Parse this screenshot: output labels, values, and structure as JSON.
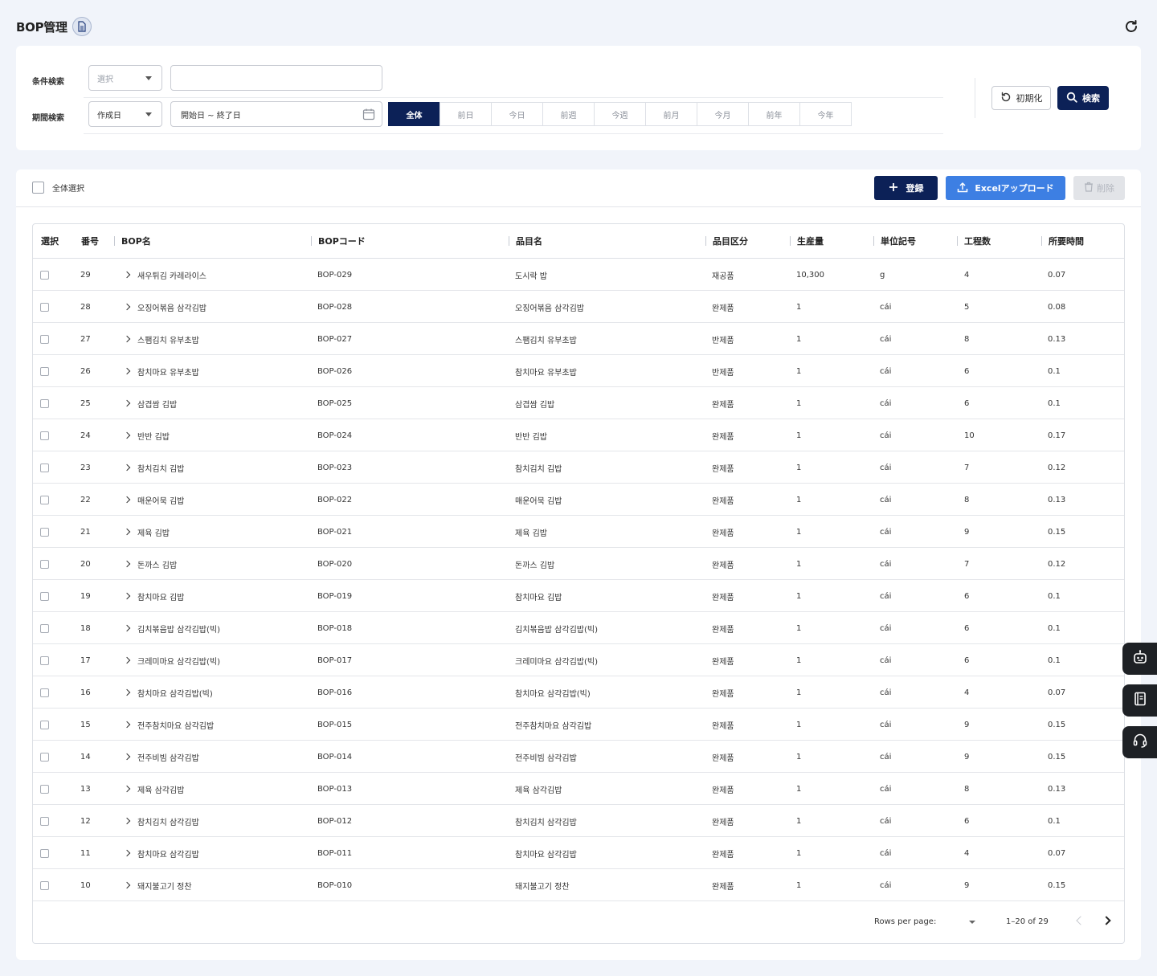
{
  "header": {
    "title": "BOP管理"
  },
  "search": {
    "condition_label": "条件検索",
    "condition_select_placeholder": "選択",
    "condition_input_value": "",
    "period_label": "期間検索",
    "period_select_value": "作成日",
    "date_range_placeholder": "開始日 ~ 終了日",
    "period_options": [
      "全体",
      "前日",
      "今日",
      "前週",
      "今週",
      "前月",
      "今月",
      "前年",
      "今年"
    ],
    "active_period": "全体",
    "reset_label": "初期化",
    "search_label": "検索"
  },
  "toolbar": {
    "select_all_label": "全体選択",
    "register_label": "登録",
    "excel_label": "Excelアップロード",
    "delete_label": "削除"
  },
  "table": {
    "columns": [
      "選択",
      "番号",
      "BOP名",
      "BOPコード",
      "品目名",
      "品目区分",
      "生産量",
      "単位記号",
      "工程数",
      "所要時間"
    ],
    "rows": [
      {
        "no": "29",
        "name": "새우튀김 카레라이스",
        "code": "BOP-029",
        "item": "도시락 밥",
        "category": "재공품",
        "qty": "10,300",
        "unit": "g",
        "steps": "4",
        "time": "0.07"
      },
      {
        "no": "28",
        "name": "오징어볶음 삼각김밥",
        "code": "BOP-028",
        "item": "오징어볶음 삼각김밥",
        "category": "완제품",
        "qty": "1",
        "unit": "cái",
        "steps": "5",
        "time": "0.08"
      },
      {
        "no": "27",
        "name": "스팸김치 유부초밥",
        "code": "BOP-027",
        "item": "스팸김치 유부초밥",
        "category": "반제품",
        "qty": "1",
        "unit": "cái",
        "steps": "8",
        "time": "0.13"
      },
      {
        "no": "26",
        "name": "참치마요 유부초밥",
        "code": "BOP-026",
        "item": "참치마요 유부초밥",
        "category": "반제품",
        "qty": "1",
        "unit": "cái",
        "steps": "6",
        "time": "0.1"
      },
      {
        "no": "25",
        "name": "삼겹쌈 김밥",
        "code": "BOP-025",
        "item": "삼겹쌈 김밥",
        "category": "완제품",
        "qty": "1",
        "unit": "cái",
        "steps": "6",
        "time": "0.1"
      },
      {
        "no": "24",
        "name": "반반 김밥",
        "code": "BOP-024",
        "item": "반반 김밥",
        "category": "완제품",
        "qty": "1",
        "unit": "cái",
        "steps": "10",
        "time": "0.17"
      },
      {
        "no": "23",
        "name": "참치김치 김밥",
        "code": "BOP-023",
        "item": "참치김치 김밥",
        "category": "완제품",
        "qty": "1",
        "unit": "cái",
        "steps": "7",
        "time": "0.12"
      },
      {
        "no": "22",
        "name": "매운어묵 김밥",
        "code": "BOP-022",
        "item": "매운어묵 김밥",
        "category": "완제품",
        "qty": "1",
        "unit": "cái",
        "steps": "8",
        "time": "0.13"
      },
      {
        "no": "21",
        "name": "제육 김밥",
        "code": "BOP-021",
        "item": "제육 김밥",
        "category": "완제품",
        "qty": "1",
        "unit": "cái",
        "steps": "9",
        "time": "0.15"
      },
      {
        "no": "20",
        "name": "돈까스 김밥",
        "code": "BOP-020",
        "item": "돈까스 김밥",
        "category": "완제품",
        "qty": "1",
        "unit": "cái",
        "steps": "7",
        "time": "0.12"
      },
      {
        "no": "19",
        "name": "참치마요 김밥",
        "code": "BOP-019",
        "item": "참치마요 김밥",
        "category": "완제품",
        "qty": "1",
        "unit": "cái",
        "steps": "6",
        "time": "0.1"
      },
      {
        "no": "18",
        "name": "김치볶음밥 삼각김밥(빅)",
        "code": "BOP-018",
        "item": "김치볶음밥 삼각김밥(빅)",
        "category": "완제품",
        "qty": "1",
        "unit": "cái",
        "steps": "6",
        "time": "0.1"
      },
      {
        "no": "17",
        "name": "크레미마요 삼각김밥(빅)",
        "code": "BOP-017",
        "item": "크레미마요 삼각김밥(빅)",
        "category": "완제품",
        "qty": "1",
        "unit": "cái",
        "steps": "6",
        "time": "0.1"
      },
      {
        "no": "16",
        "name": "참치마요 삼각김밥(빅)",
        "code": "BOP-016",
        "item": "참치마요 삼각김밥(빅)",
        "category": "완제품",
        "qty": "1",
        "unit": "cái",
        "steps": "4",
        "time": "0.07"
      },
      {
        "no": "15",
        "name": "전주참치마요 삼각김밥",
        "code": "BOP-015",
        "item": "전주참치마요 삼각김밥",
        "category": "완제품",
        "qty": "1",
        "unit": "cái",
        "steps": "9",
        "time": "0.15"
      },
      {
        "no": "14",
        "name": "전주비빔 삼각김밥",
        "code": "BOP-014",
        "item": "전주비빔 삼각김밥",
        "category": "완제품",
        "qty": "1",
        "unit": "cái",
        "steps": "9",
        "time": "0.15"
      },
      {
        "no": "13",
        "name": "제육 삼각김밥",
        "code": "BOP-013",
        "item": "제육 삼각김밥",
        "category": "완제품",
        "qty": "1",
        "unit": "cái",
        "steps": "8",
        "time": "0.13"
      },
      {
        "no": "12",
        "name": "참치김치 삼각김밥",
        "code": "BOP-012",
        "item": "참치김치 삼각김밥",
        "category": "완제품",
        "qty": "1",
        "unit": "cái",
        "steps": "6",
        "time": "0.1"
      },
      {
        "no": "11",
        "name": "참치마요 삼각김밥",
        "code": "BOP-011",
        "item": "참치마요 삼각김밥",
        "category": "완제품",
        "qty": "1",
        "unit": "cái",
        "steps": "4",
        "time": "0.07"
      },
      {
        "no": "10",
        "name": "돼지불고기 정찬",
        "code": "BOP-010",
        "item": "돼지불고기 정찬",
        "category": "완제품",
        "qty": "1",
        "unit": "cái",
        "steps": "9",
        "time": "0.15"
      }
    ]
  },
  "pagination": {
    "rows_per_page_label": "Rows per page:",
    "range_label": "1–20 of 29"
  },
  "floating": {
    "icons": [
      "robot-icon",
      "book-icon",
      "headset-icon"
    ]
  },
  "colors": {
    "primary": "#0c2157",
    "accent": "#3d7fe3",
    "background": "#f1f4fa"
  }
}
